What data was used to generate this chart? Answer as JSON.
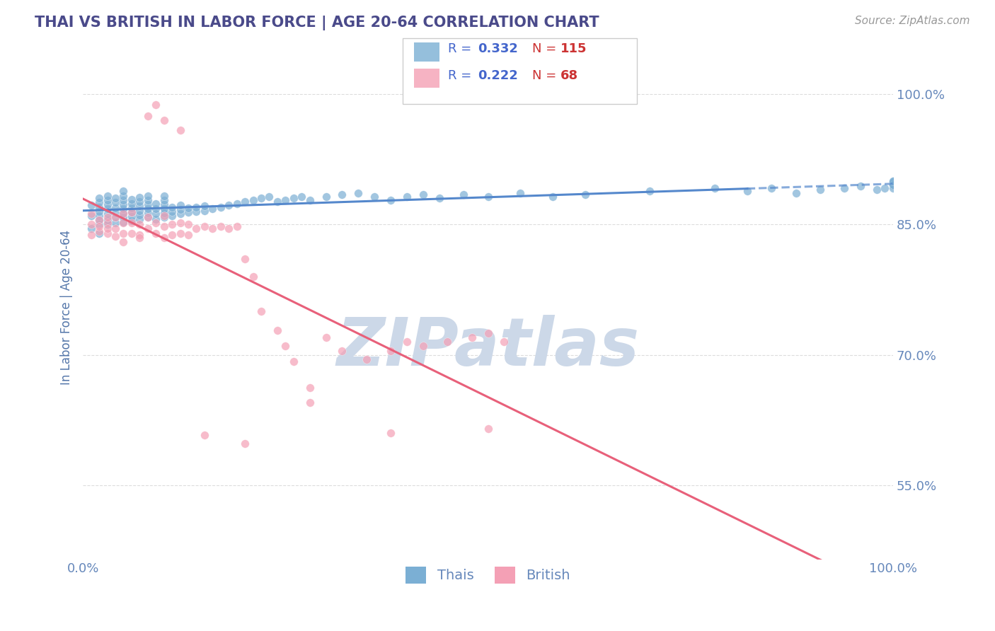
{
  "title": "THAI VS BRITISH IN LABOR FORCE | AGE 20-64 CORRELATION CHART",
  "source_text": "Source: ZipAtlas.com",
  "ylabel": "In Labor Force | Age 20-64",
  "xlim": [
    0.0,
    1.0
  ],
  "ylim": [
    0.465,
    1.045
  ],
  "yticks": [
    0.55,
    0.7,
    0.85,
    1.0
  ],
  "ytick_labels": [
    "55.0%",
    "70.0%",
    "85.0%",
    "100.0%"
  ],
  "R_thai": 0.332,
  "N_thai": 115,
  "R_british": 0.222,
  "N_british": 68,
  "thai_color": "#7bafd4",
  "british_color": "#f4a0b5",
  "british_line_color": "#e8607a",
  "thai_line_color": "#5588cc",
  "title_color": "#4a4a8a",
  "axis_label_color": "#5577aa",
  "tick_color": "#6688bb",
  "watermark_color": "#ccd8e8",
  "watermark_text": "ZIPatlas",
  "legend_R_color": "#4466cc",
  "legend_N_color": "#cc3333",
  "background_color": "#ffffff",
  "grid_color": "#dddddd",
  "thai_scatter_x": [
    0.01,
    0.01,
    0.01,
    0.02,
    0.02,
    0.02,
    0.02,
    0.02,
    0.02,
    0.02,
    0.02,
    0.03,
    0.03,
    0.03,
    0.03,
    0.03,
    0.03,
    0.03,
    0.04,
    0.04,
    0.04,
    0.04,
    0.04,
    0.04,
    0.05,
    0.05,
    0.05,
    0.05,
    0.05,
    0.05,
    0.05,
    0.05,
    0.06,
    0.06,
    0.06,
    0.06,
    0.06,
    0.06,
    0.07,
    0.07,
    0.07,
    0.07,
    0.07,
    0.07,
    0.08,
    0.08,
    0.08,
    0.08,
    0.08,
    0.08,
    0.09,
    0.09,
    0.09,
    0.09,
    0.1,
    0.1,
    0.1,
    0.1,
    0.1,
    0.1,
    0.11,
    0.11,
    0.11,
    0.12,
    0.12,
    0.12,
    0.13,
    0.13,
    0.14,
    0.14,
    0.15,
    0.15,
    0.16,
    0.17,
    0.18,
    0.19,
    0.2,
    0.21,
    0.22,
    0.23,
    0.24,
    0.25,
    0.26,
    0.27,
    0.28,
    0.3,
    0.32,
    0.34,
    0.36,
    0.38,
    0.4,
    0.42,
    0.44,
    0.47,
    0.5,
    0.54,
    0.58,
    0.62,
    0.7,
    0.78,
    0.82,
    0.85,
    0.88,
    0.91,
    0.94,
    0.96,
    0.98,
    0.99,
    1.0,
    1.0,
    1.0,
    1.0,
    1.0,
    1.0,
    1.0
  ],
  "thai_scatter_y": [
    0.845,
    0.86,
    0.872,
    0.85,
    0.86,
    0.865,
    0.87,
    0.875,
    0.88,
    0.855,
    0.84,
    0.85,
    0.855,
    0.862,
    0.868,
    0.873,
    0.878,
    0.883,
    0.852,
    0.858,
    0.863,
    0.869,
    0.875,
    0.88,
    0.853,
    0.858,
    0.863,
    0.868,
    0.873,
    0.878,
    0.883,
    0.888,
    0.854,
    0.859,
    0.864,
    0.869,
    0.874,
    0.879,
    0.856,
    0.861,
    0.866,
    0.871,
    0.876,
    0.881,
    0.858,
    0.863,
    0.868,
    0.873,
    0.878,
    0.883,
    0.856,
    0.862,
    0.868,
    0.874,
    0.858,
    0.863,
    0.868,
    0.873,
    0.878,
    0.883,
    0.86,
    0.865,
    0.87,
    0.862,
    0.867,
    0.872,
    0.864,
    0.869,
    0.865,
    0.87,
    0.866,
    0.871,
    0.868,
    0.87,
    0.872,
    0.874,
    0.876,
    0.878,
    0.88,
    0.882,
    0.876,
    0.878,
    0.88,
    0.882,
    0.878,
    0.882,
    0.884,
    0.886,
    0.882,
    0.878,
    0.882,
    0.884,
    0.88,
    0.884,
    0.882,
    0.886,
    0.882,
    0.884,
    0.888,
    0.892,
    0.888,
    0.892,
    0.886,
    0.89,
    0.892,
    0.894,
    0.89,
    0.892,
    0.896,
    0.898,
    0.9,
    0.895,
    0.892,
    0.896,
    0.9
  ],
  "british_scatter_x": [
    0.01,
    0.01,
    0.01,
    0.02,
    0.02,
    0.02,
    0.03,
    0.03,
    0.03,
    0.03,
    0.04,
    0.04,
    0.04,
    0.05,
    0.05,
    0.05,
    0.05,
    0.06,
    0.06,
    0.06,
    0.07,
    0.07,
    0.07,
    0.08,
    0.08,
    0.09,
    0.09,
    0.1,
    0.1,
    0.1,
    0.11,
    0.11,
    0.12,
    0.12,
    0.13,
    0.13,
    0.14,
    0.15,
    0.16,
    0.17,
    0.18,
    0.19,
    0.2,
    0.21,
    0.22,
    0.24,
    0.25,
    0.26,
    0.28,
    0.3,
    0.32,
    0.35,
    0.38,
    0.4,
    0.42,
    0.45,
    0.48,
    0.5,
    0.52,
    0.28,
    0.15,
    0.2,
    0.38,
    0.5,
    0.1,
    0.12,
    0.08,
    0.09
  ],
  "british_scatter_y": [
    0.838,
    0.85,
    0.862,
    0.842,
    0.855,
    0.848,
    0.84,
    0.852,
    0.845,
    0.858,
    0.836,
    0.845,
    0.858,
    0.84,
    0.852,
    0.83,
    0.862,
    0.84,
    0.852,
    0.864,
    0.838,
    0.85,
    0.835,
    0.845,
    0.858,
    0.84,
    0.852,
    0.835,
    0.848,
    0.86,
    0.838,
    0.85,
    0.84,
    0.852,
    0.838,
    0.85,
    0.845,
    0.848,
    0.845,
    0.848,
    0.845,
    0.848,
    0.81,
    0.79,
    0.75,
    0.728,
    0.71,
    0.692,
    0.662,
    0.72,
    0.705,
    0.695,
    0.705,
    0.715,
    0.71,
    0.715,
    0.72,
    0.725,
    0.715,
    0.645,
    0.608,
    0.598,
    0.61,
    0.615,
    0.97,
    0.958,
    0.975,
    0.988
  ]
}
